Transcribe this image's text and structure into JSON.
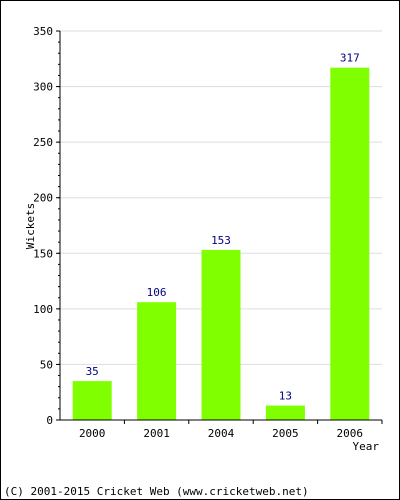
{
  "chart_data": {
    "type": "bar",
    "categories": [
      "2000",
      "2001",
      "2004",
      "2005",
      "2006"
    ],
    "values": [
      35,
      106,
      153,
      13,
      317
    ],
    "data_labels": [
      "35",
      "106",
      "153",
      "13",
      "317"
    ],
    "xlabel": "Year",
    "ylabel": "Wickets",
    "ylim": [
      0,
      350
    ],
    "yticks": [
      0,
      50,
      100,
      150,
      200,
      250,
      300,
      350
    ],
    "grid": true,
    "bar_color": "#80ff00",
    "label_color": "#000080"
  },
  "footer": {
    "copyright": "(C) 2001-2015 Cricket Web (www.cricketweb.net)"
  }
}
